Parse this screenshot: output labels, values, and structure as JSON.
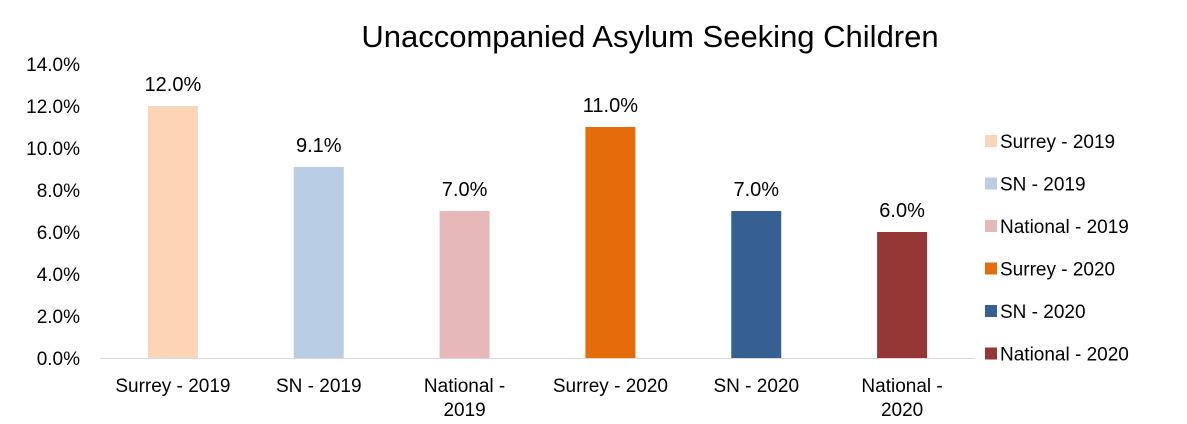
{
  "chart_data": {
    "type": "bar",
    "title": "Unaccompanied Asylum Seeking Children",
    "xlabel": "",
    "ylabel": "",
    "ylim": [
      0,
      14
    ],
    "yticks": [
      "0.0%",
      "2.0%",
      "4.0%",
      "6.0%",
      "8.0%",
      "10.0%",
      "12.0%",
      "14.0%"
    ],
    "grid": false,
    "legend_position": "right",
    "categories": [
      {
        "lines": [
          "Surrey - 2019"
        ]
      },
      {
        "lines": [
          "SN - 2019"
        ]
      },
      {
        "lines": [
          "National -",
          "2019"
        ]
      },
      {
        "lines": [
          "Surrey - 2020"
        ]
      },
      {
        "lines": [
          "SN - 2020"
        ]
      },
      {
        "lines": [
          "National -",
          "2020"
        ]
      }
    ],
    "values": [
      12.0,
      9.1,
      7.0,
      11.0,
      7.0,
      6.0
    ],
    "data_labels": [
      "12.0%",
      "9.1%",
      "7.0%",
      "11.0%",
      "7.0%",
      "6.0%"
    ],
    "legend": [
      "Surrey - 2019",
      "SN - 2019",
      "National - 2019",
      "Surrey - 2020",
      "SN - 2020",
      "National - 2020"
    ],
    "colors": [
      "#FBD5B5",
      "#B9CDE5",
      "#E6B9B8",
      "#E46C0A",
      "#376092",
      "#953735"
    ]
  }
}
